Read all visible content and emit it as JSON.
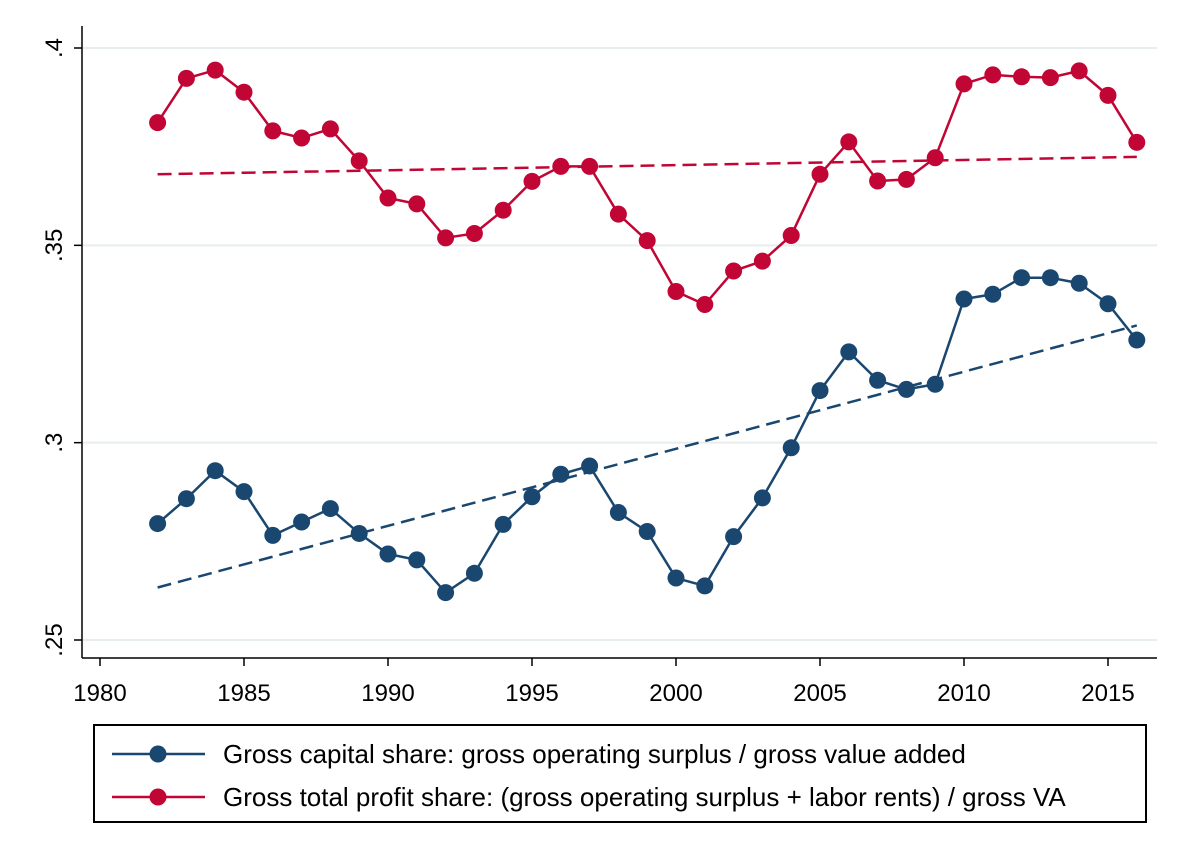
{
  "chart_data": {
    "type": "line",
    "title": "",
    "xlabel": "",
    "ylabel": "",
    "xlim": [
      1980,
      2016
    ],
    "ylim": [
      0.25,
      0.4
    ],
    "grid": true,
    "x_ticks": [
      1980,
      1985,
      1990,
      1995,
      2000,
      2005,
      2010,
      2015
    ],
    "x_tick_labels": [
      "1980",
      "1985",
      "1990",
      "1995",
      "2000",
      "2005",
      "2010",
      "2015"
    ],
    "y_ticks": [
      0.25,
      0.3,
      0.35,
      0.4
    ],
    "y_tick_labels": [
      ".25",
      ".3",
      ".35",
      ".4"
    ],
    "legend_position": "bottom",
    "x": [
      1982,
      1983,
      1984,
      1985,
      1986,
      1987,
      1988,
      1989,
      1990,
      1991,
      1992,
      1993,
      1994,
      1995,
      1996,
      1997,
      1998,
      1999,
      2000,
      2001,
      2002,
      2003,
      2004,
      2005,
      2006,
      2007,
      2008,
      2009,
      2010,
      2011,
      2012,
      2013,
      2014,
      2015,
      2016
    ],
    "series": [
      {
        "name": "Gross capital share: gross operating surplus / gross value added",
        "color": "#1a476f",
        "values": [
          0.2795,
          0.2858,
          0.2929,
          0.2876,
          0.2765,
          0.2799,
          0.2833,
          0.277,
          0.2718,
          0.2703,
          0.262,
          0.2669,
          0.2793,
          0.2863,
          0.292,
          0.2941,
          0.2823,
          0.2775,
          0.2657,
          0.2637,
          0.2762,
          0.286,
          0.2987,
          0.3132,
          0.323,
          0.3158,
          0.3135,
          0.3148,
          0.3364,
          0.3376,
          0.3418,
          0.3418,
          0.3404,
          0.3352,
          0.326
        ],
        "fit": {
          "x": [
            1982,
            2016
          ],
          "y": [
            0.2633,
            0.3297
          ]
        }
      },
      {
        "name": "Gross total profit share: (gross operating surplus + labor rents) / gross VA",
        "color": "#c10534",
        "values": [
          0.3811,
          0.3923,
          0.3944,
          0.3888,
          0.379,
          0.3772,
          0.3795,
          0.3714,
          0.362,
          0.3605,
          0.3519,
          0.353,
          0.3589,
          0.3662,
          0.37,
          0.37,
          0.3579,
          0.3512,
          0.3383,
          0.335,
          0.3435,
          0.346,
          0.3525,
          0.368,
          0.3762,
          0.3663,
          0.3667,
          0.3722,
          0.3909,
          0.3932,
          0.3927,
          0.3925,
          0.3942,
          0.388,
          0.3761
        ],
        "fit": {
          "x": [
            1982,
            2016
          ],
          "y": [
            0.368,
            0.3724
          ]
        }
      }
    ]
  }
}
